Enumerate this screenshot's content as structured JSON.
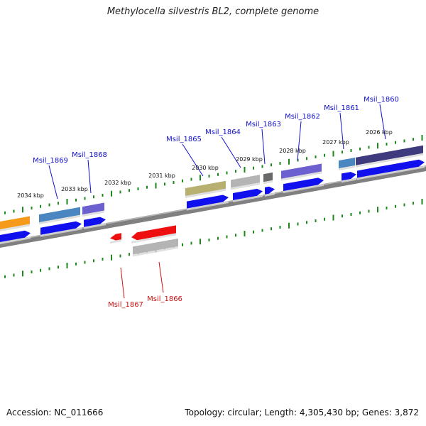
{
  "title": "Methylocella silvestris BL2, complete genome",
  "footer": {
    "accession": "Accession: NC_011666",
    "topology": "Topology: circular; Length: 4,305,430 bp; Genes: 3,872"
  },
  "colors": {
    "forward_label": "#1010cc",
    "reverse_label": "#cc1010",
    "cds_forward": "#1010ee",
    "cds_reverse": "#ee1010",
    "backbone": "#808080",
    "ticks": "#1a8a1a"
  },
  "kbp_labels": [
    {
      "text": "2026 kbp"
    },
    {
      "text": "2027 kbp"
    },
    {
      "text": "2028 kbp"
    },
    {
      "text": "2029 kbp"
    },
    {
      "text": "2030 kbp"
    },
    {
      "text": "2031 kbp"
    },
    {
      "text": "2032 kbp"
    },
    {
      "text": "2033 kbp"
    },
    {
      "text": "2034 kbp"
    }
  ],
  "gene_labels": [
    {
      "text": "Msil_1860",
      "strand": "forward"
    },
    {
      "text": "Msil_1861",
      "strand": "forward"
    },
    {
      "text": "Msil_1862",
      "strand": "forward"
    },
    {
      "text": "Msil_1863",
      "strand": "forward"
    },
    {
      "text": "Msil_1864",
      "strand": "forward"
    },
    {
      "text": "Msil_1865",
      "strand": "forward"
    },
    {
      "text": "Msil_1868",
      "strand": "forward"
    },
    {
      "text": "Msil_1869",
      "strand": "forward"
    },
    {
      "text": "Msil_1866",
      "strand": "reverse"
    },
    {
      "text": "Msil_1867",
      "strand": "reverse"
    }
  ],
  "genes": [
    {
      "name": "gene-msil-1860",
      "strand": "forward",
      "cog_color": "#3e3a7e"
    },
    {
      "name": "gene-msil-1861",
      "strand": "forward",
      "cog_color": "#4a86bf"
    },
    {
      "name": "gene-msil-1862",
      "strand": "forward",
      "cog_color": "#6c5fcf"
    },
    {
      "name": "gene-msil-1863",
      "strand": "forward",
      "cog_color": "#6a6a6a"
    },
    {
      "name": "gene-msil-1864",
      "strand": "forward",
      "cog_color": "#b4b4b4"
    },
    {
      "name": "gene-msil-1865",
      "strand": "forward",
      "cog_color": "#b8b070"
    },
    {
      "name": "gene-msil-1868",
      "strand": "forward",
      "cog_color": "#6c5fcf"
    },
    {
      "name": "gene-msil-1869",
      "strand": "forward",
      "cog_color": "#4a86bf"
    },
    {
      "name": "gene-orange",
      "strand": "forward",
      "cog_color": "#f59a1a"
    },
    {
      "name": "gene-msil-1866",
      "strand": "reverse",
      "cog_color": "#b4b4b4"
    },
    {
      "name": "gene-msil-1867",
      "strand": "reverse",
      "cog_color": "#ee1010"
    }
  ]
}
